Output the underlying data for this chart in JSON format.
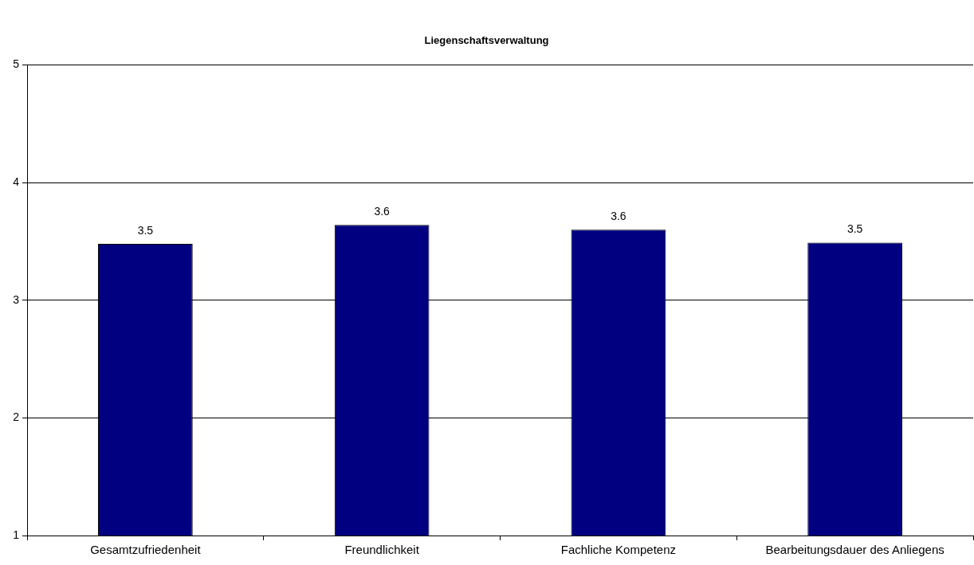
{
  "chart_data": {
    "type": "bar",
    "title": "Liegenschaftsverwaltung",
    "categories": [
      "Gesamtzufriedenheit",
      "Freundlichkeit",
      "Fachliche Kompetenz",
      "Bearbeitungsdauer des Anliegens"
    ],
    "values": [
      3.48,
      3.64,
      3.6,
      3.49
    ],
    "value_labels": [
      "3.5",
      "3.6",
      "3.6",
      "3.5"
    ],
    "color": "#000080",
    "ylim": [
      1,
      5
    ],
    "yticks": [
      1,
      2,
      3,
      4,
      5
    ],
    "grid": "y"
  }
}
